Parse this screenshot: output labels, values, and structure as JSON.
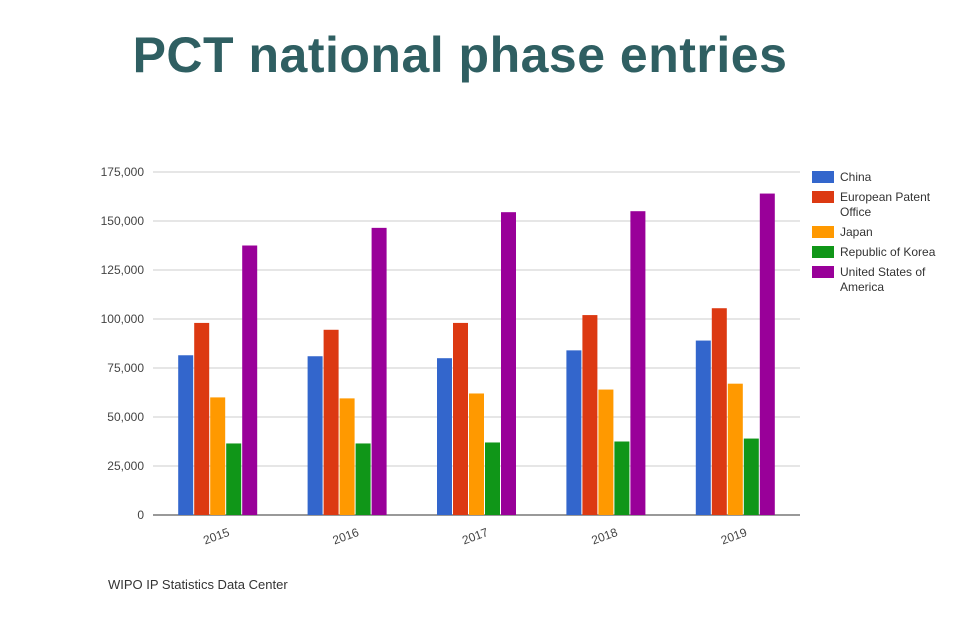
{
  "title": "PCT national phase entries",
  "source": "WIPO IP Statistics Data Center",
  "chart_data": {
    "type": "bar",
    "categories": [
      "2015",
      "2016",
      "2017",
      "2018",
      "2019"
    ],
    "series": [
      {
        "name": "China",
        "color": "#3366cc",
        "values": [
          81500,
          81000,
          80000,
          84000,
          89000
        ]
      },
      {
        "name": "European Patent Office",
        "color": "#dc3912",
        "values": [
          98000,
          94500,
          98000,
          102000,
          105500
        ]
      },
      {
        "name": "Japan",
        "color": "#ff9900",
        "values": [
          60000,
          59500,
          62000,
          64000,
          67000
        ]
      },
      {
        "name": "Republic of Korea",
        "color": "#109618",
        "values": [
          36500,
          36500,
          37000,
          37500,
          39000
        ]
      },
      {
        "name": "United States of America",
        "color": "#990099",
        "values": [
          137500,
          146500,
          154500,
          155000,
          164000
        ]
      }
    ],
    "yticks": [
      "0",
      "25,000",
      "50,000",
      "75,000",
      "100,000",
      "125,000",
      "150,000",
      "175,000"
    ],
    "ylim": [
      0,
      175000
    ],
    "grid": true,
    "legend_position": "right"
  }
}
